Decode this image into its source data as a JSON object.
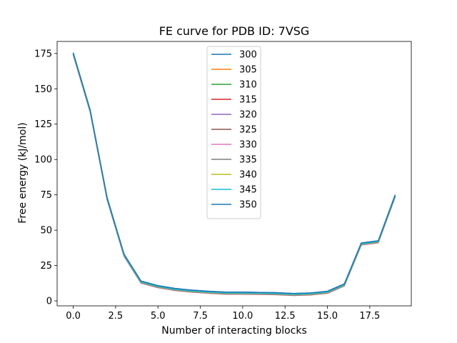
{
  "chart_data": {
    "type": "line",
    "title": "FE curve for PDB ID: 7VSG",
    "xlabel": "Number of interacting blocks",
    "ylabel": "Free energy (kJ/mol)",
    "xlim": [
      -0.95,
      19.95
    ],
    "ylim": [
      -3.5,
      183.5
    ],
    "xticks": [
      0.0,
      2.5,
      5.0,
      7.5,
      10.0,
      12.5,
      15.0,
      17.5
    ],
    "xtick_labels": [
      "0.0",
      "2.5",
      "5.0",
      "7.5",
      "10.0",
      "12.5",
      "15.0",
      "17.5"
    ],
    "yticks": [
      0,
      25,
      50,
      75,
      100,
      125,
      150,
      175
    ],
    "ytick_labels": [
      "0",
      "25",
      "50",
      "75",
      "100",
      "125",
      "150",
      "175"
    ],
    "grid": false,
    "legend_position": "top-center",
    "x": [
      0,
      1,
      2,
      3,
      4,
      5,
      6,
      7,
      8,
      9,
      10,
      11,
      12,
      13,
      14,
      15,
      16,
      17,
      18,
      19
    ],
    "series": [
      {
        "name": "300",
        "color": "#1f77b4",
        "values": [
          175.5,
          135.0,
          73.0,
          33.0,
          14.0,
          10.8,
          8.8,
          7.6,
          6.8,
          6.2,
          6.2,
          6.0,
          5.8,
          5.2,
          5.6,
          6.8,
          12.0,
          41.0,
          42.5,
          75.0
        ]
      },
      {
        "name": "305",
        "color": "#ff7f0e",
        "values": [
          174.9,
          134.4,
          72.4,
          32.4,
          13.4,
          10.2,
          8.2,
          7.0,
          6.2,
          5.6,
          5.6,
          5.4,
          5.2,
          4.6,
          5.0,
          6.2,
          11.4,
          40.4,
          41.9,
          74.4
        ]
      },
      {
        "name": "310",
        "color": "#2ca02c",
        "values": [
          174.7,
          134.2,
          72.2,
          32.2,
          13.2,
          10.0,
          8.0,
          6.8,
          6.0,
          5.4,
          5.4,
          5.2,
          5.0,
          4.4,
          4.8,
          6.0,
          11.2,
          40.2,
          41.7,
          74.2
        ]
      },
      {
        "name": "315",
        "color": "#d62728",
        "values": [
          174.5,
          134.0,
          72.0,
          32.0,
          13.0,
          9.8,
          7.8,
          6.6,
          5.8,
          5.2,
          5.2,
          5.0,
          4.8,
          4.2,
          4.6,
          5.8,
          11.0,
          40.0,
          41.5,
          74.0
        ]
      },
      {
        "name": "320",
        "color": "#9467bd",
        "values": [
          174.3,
          133.8,
          71.8,
          31.8,
          12.8,
          9.6,
          7.6,
          6.4,
          5.6,
          5.0,
          5.0,
          4.8,
          4.6,
          4.0,
          4.4,
          5.6,
          10.8,
          39.8,
          41.3,
          73.8
        ]
      },
      {
        "name": "325",
        "color": "#8c564b",
        "values": [
          174.1,
          133.6,
          71.6,
          31.6,
          12.6,
          9.4,
          7.4,
          6.2,
          5.4,
          4.8,
          4.8,
          4.6,
          4.4,
          3.8,
          4.2,
          5.4,
          10.6,
          39.6,
          41.1,
          73.6
        ]
      },
      {
        "name": "330",
        "color": "#e377c2",
        "values": [
          174.3,
          133.8,
          71.8,
          31.8,
          12.8,
          9.6,
          7.6,
          6.4,
          5.6,
          5.0,
          5.0,
          4.8,
          4.6,
          4.0,
          4.4,
          5.6,
          10.8,
          39.8,
          41.3,
          73.8
        ]
      },
      {
        "name": "335",
        "color": "#7f7f7f",
        "values": [
          174.5,
          134.0,
          72.0,
          32.0,
          13.0,
          9.8,
          7.8,
          6.6,
          5.8,
          5.2,
          5.2,
          5.0,
          4.8,
          4.2,
          4.6,
          5.8,
          11.0,
          40.0,
          41.5,
          74.0
        ]
      },
      {
        "name": "340",
        "color": "#bcbd22",
        "values": [
          174.7,
          134.2,
          72.2,
          32.2,
          13.2,
          10.0,
          8.0,
          6.8,
          6.0,
          5.4,
          5.4,
          5.2,
          5.0,
          4.4,
          4.8,
          6.0,
          11.2,
          40.2,
          41.7,
          74.2
        ]
      },
      {
        "name": "345",
        "color": "#17becf",
        "values": [
          174.9,
          134.4,
          72.4,
          32.4,
          13.4,
          10.2,
          8.2,
          7.0,
          6.2,
          5.6,
          5.6,
          5.4,
          5.2,
          4.6,
          5.0,
          6.2,
          11.4,
          40.4,
          41.9,
          74.4
        ]
      },
      {
        "name": "350",
        "color": "#1f77b4",
        "values": [
          175.5,
          135.0,
          73.0,
          33.0,
          14.0,
          10.8,
          8.8,
          7.6,
          6.8,
          6.2,
          6.2,
          6.0,
          5.8,
          5.2,
          5.6,
          6.8,
          12.0,
          41.0,
          42.5,
          75.0
        ]
      }
    ]
  }
}
